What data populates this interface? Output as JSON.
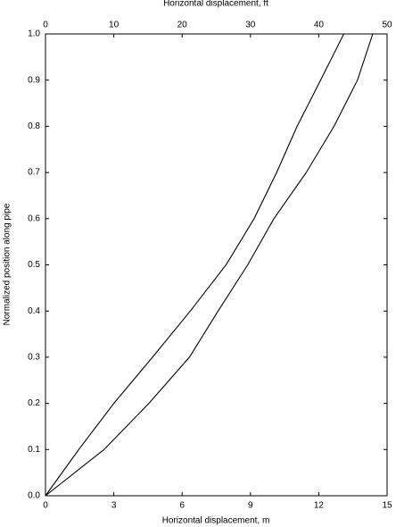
{
  "chart_data": {
    "type": "line",
    "x_label": "Horizontal displacement, m",
    "x2_label": "Horizontal displacement, ft",
    "y_label": "Normalized position along pipe",
    "xlim": [
      0,
      15
    ],
    "xticks": [
      0,
      3,
      6,
      9,
      12,
      15
    ],
    "x2lim": [
      0,
      50
    ],
    "x2ticks": [
      0,
      10,
      20,
      30,
      40,
      50
    ],
    "ylim": [
      0,
      1.0
    ],
    "yticks": [
      {
        "value": 0,
        "label": "0.0"
      },
      0.1,
      0.2,
      0.3,
      0.4,
      0.5,
      0.6,
      0.7,
      0.8,
      0.9,
      {
        "value": 1.0,
        "label": "1.0"
      }
    ],
    "grid": false,
    "series": [
      {
        "color": "#000000",
        "x": [
          0,
          1.46,
          3.0,
          4.7,
          6.36,
          7.93,
          9.16,
          10.15,
          11.05,
          12.08,
          13.1
        ],
        "values": [
          0,
          0.1,
          0.2,
          0.3,
          0.4,
          0.5,
          0.6,
          0.7,
          0.8,
          0.9,
          1.0
        ]
      },
      {
        "color": "#000000",
        "x": [
          0,
          2.57,
          4.54,
          6.32,
          7.58,
          8.88,
          10.03,
          11.45,
          12.67,
          13.7,
          14.37
        ],
        "values": [
          0,
          0.1,
          0.2,
          0.3,
          0.4,
          0.5,
          0.6,
          0.7,
          0.8,
          0.9,
          1.0
        ]
      }
    ]
  }
}
